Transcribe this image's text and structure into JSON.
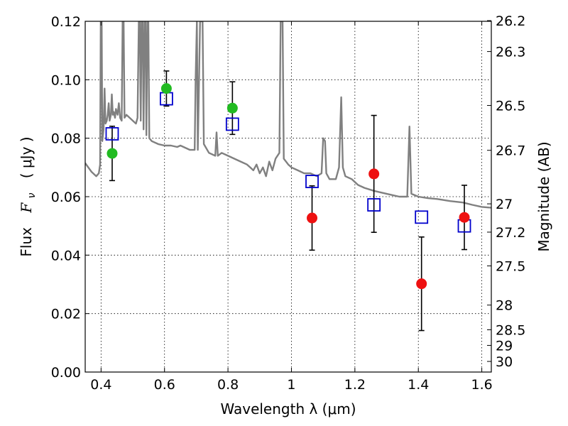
{
  "chart_data": {
    "type": "scatter",
    "xlabel": "Wavelength  λ (μm)",
    "ylabel_text": "Flux",
    "ylabel_math_var": "F",
    "ylabel_math_sub": "ν",
    "ylabel_unit": "( μJy )",
    "y2label": "Magnitude (AB)",
    "xlim": [
      0.35,
      1.63
    ],
    "ylim": [
      0.0,
      0.12
    ],
    "grid": true,
    "x_ticks": [
      {
        "value": 0.4,
        "label": "0.4"
      },
      {
        "value": 0.6,
        "label": "0.6"
      },
      {
        "value": 0.8,
        "label": "0.8"
      },
      {
        "value": 1.0,
        "label": "1"
      },
      {
        "value": 1.2,
        "label": "1.2"
      },
      {
        "value": 1.4,
        "label": "1.4"
      },
      {
        "value": 1.6,
        "label": "1.6"
      }
    ],
    "y_ticks": [
      {
        "value": 0.0,
        "label": "0.00"
      },
      {
        "value": 0.02,
        "label": "0.02"
      },
      {
        "value": 0.04,
        "label": "0.04"
      },
      {
        "value": 0.06,
        "label": "0.06"
      },
      {
        "value": 0.08,
        "label": "0.08"
      },
      {
        "value": 0.1,
        "label": "0.10"
      },
      {
        "value": 0.12,
        "label": "0.12"
      }
    ],
    "y2_ticks": [
      {
        "mag": 26.2,
        "label": "26.2"
      },
      {
        "mag": 26.3,
        "label": "26.3"
      },
      {
        "mag": 26.5,
        "label": "26.5"
      },
      {
        "mag": 26.7,
        "label": "26.7"
      },
      {
        "mag": 27.0,
        "label": "27"
      },
      {
        "mag": 27.2,
        "label": "27.2"
      },
      {
        "mag": 27.5,
        "label": "27.5"
      },
      {
        "mag": 28.0,
        "label": "28"
      },
      {
        "mag": 28.5,
        "label": "28.5"
      },
      {
        "mag": 29.0,
        "label": "29"
      },
      {
        "mag": 30.0,
        "label": "30"
      }
    ],
    "model_points": [
      {
        "x": 0.435,
        "y": 0.0815
      },
      {
        "x": 0.606,
        "y": 0.0935
      },
      {
        "x": 0.814,
        "y": 0.0848
      },
      {
        "x": 1.065,
        "y": 0.0652
      },
      {
        "x": 1.26,
        "y": 0.0572
      },
      {
        "x": 1.41,
        "y": 0.053
      },
      {
        "x": 1.545,
        "y": 0.05
      }
    ],
    "observed_optical": [
      {
        "x": 0.435,
        "y": 0.0748,
        "err": 0.0093
      },
      {
        "x": 0.606,
        "y": 0.097,
        "err": 0.006
      },
      {
        "x": 0.814,
        "y": 0.0903,
        "err": 0.009
      }
    ],
    "observed_nir": [
      {
        "x": 1.065,
        "y": 0.0527,
        "err": 0.011
      },
      {
        "x": 1.26,
        "y": 0.0678,
        "err": 0.02
      },
      {
        "x": 1.41,
        "y": 0.0302,
        "err": 0.016
      },
      {
        "x": 1.545,
        "y": 0.0529,
        "err": 0.011
      }
    ],
    "spectrum": [
      [
        0.35,
        0.0715
      ],
      [
        0.37,
        0.0685
      ],
      [
        0.385,
        0.067
      ],
      [
        0.393,
        0.068
      ],
      [
        0.397,
        0.071
      ],
      [
        0.399,
        0.12
      ],
      [
        0.402,
        0.12
      ],
      [
        0.404,
        0.079
      ],
      [
        0.408,
        0.083
      ],
      [
        0.411,
        0.097
      ],
      [
        0.414,
        0.085
      ],
      [
        0.418,
        0.086
      ],
      [
        0.421,
        0.088
      ],
      [
        0.424,
        0.092
      ],
      [
        0.427,
        0.086
      ],
      [
        0.431,
        0.088
      ],
      [
        0.434,
        0.095
      ],
      [
        0.437,
        0.088
      ],
      [
        0.44,
        0.089
      ],
      [
        0.444,
        0.087
      ],
      [
        0.447,
        0.09
      ],
      [
        0.452,
        0.088
      ],
      [
        0.456,
        0.092
      ],
      [
        0.46,
        0.087
      ],
      [
        0.465,
        0.086
      ],
      [
        0.468,
        0.12
      ],
      [
        0.471,
        0.12
      ],
      [
        0.474,
        0.087
      ],
      [
        0.48,
        0.088
      ],
      [
        0.49,
        0.087
      ],
      [
        0.5,
        0.086
      ],
      [
        0.51,
        0.085
      ],
      [
        0.515,
        0.087
      ],
      [
        0.519,
        0.12
      ],
      [
        0.522,
        0.12
      ],
      [
        0.525,
        0.086
      ],
      [
        0.528,
        0.12
      ],
      [
        0.531,
        0.12
      ],
      [
        0.534,
        0.083
      ],
      [
        0.537,
        0.12
      ],
      [
        0.54,
        0.12
      ],
      [
        0.543,
        0.081
      ],
      [
        0.546,
        0.12
      ],
      [
        0.549,
        0.12
      ],
      [
        0.552,
        0.08
      ],
      [
        0.56,
        0.079
      ],
      [
        0.58,
        0.078
      ],
      [
        0.6,
        0.0775
      ],
      [
        0.62,
        0.0775
      ],
      [
        0.64,
        0.077
      ],
      [
        0.65,
        0.0775
      ],
      [
        0.66,
        0.077
      ],
      [
        0.68,
        0.076
      ],
      [
        0.695,
        0.076
      ],
      [
        0.698,
        0.1
      ],
      [
        0.702,
        0.12
      ],
      [
        0.705,
        0.076
      ],
      [
        0.712,
        0.12
      ],
      [
        0.716,
        0.12
      ],
      [
        0.72,
        0.12
      ],
      [
        0.724,
        0.078
      ],
      [
        0.74,
        0.075
      ],
      [
        0.76,
        0.074
      ],
      [
        0.764,
        0.082
      ],
      [
        0.768,
        0.074
      ],
      [
        0.78,
        0.075
      ],
      [
        0.8,
        0.074
      ],
      [
        0.82,
        0.073
      ],
      [
        0.84,
        0.072
      ],
      [
        0.86,
        0.071
      ],
      [
        0.87,
        0.07
      ],
      [
        0.88,
        0.069
      ],
      [
        0.89,
        0.071
      ],
      [
        0.9,
        0.068
      ],
      [
        0.91,
        0.07
      ],
      [
        0.92,
        0.067
      ],
      [
        0.93,
        0.072
      ],
      [
        0.94,
        0.069
      ],
      [
        0.95,
        0.073
      ],
      [
        0.962,
        0.075
      ],
      [
        0.966,
        0.12
      ],
      [
        0.972,
        0.12
      ],
      [
        0.976,
        0.073
      ],
      [
        0.99,
        0.071
      ],
      [
        1.0,
        0.07
      ],
      [
        1.02,
        0.069
      ],
      [
        1.04,
        0.068
      ],
      [
        1.06,
        0.068
      ],
      [
        1.08,
        0.067
      ],
      [
        1.095,
        0.068
      ],
      [
        1.1,
        0.08
      ],
      [
        1.106,
        0.079
      ],
      [
        1.11,
        0.068
      ],
      [
        1.12,
        0.066
      ],
      [
        1.14,
        0.066
      ],
      [
        1.15,
        0.07
      ],
      [
        1.157,
        0.094
      ],
      [
        1.162,
        0.07
      ],
      [
        1.17,
        0.067
      ],
      [
        1.19,
        0.066
      ],
      [
        1.21,
        0.064
      ],
      [
        1.23,
        0.063
      ],
      [
        1.26,
        0.062
      ],
      [
        1.3,
        0.061
      ],
      [
        1.34,
        0.06
      ],
      [
        1.365,
        0.06
      ],
      [
        1.372,
        0.084
      ],
      [
        1.378,
        0.061
      ],
      [
        1.4,
        0.06
      ],
      [
        1.43,
        0.0595
      ],
      [
        1.46,
        0.0592
      ],
      [
        1.5,
        0.0585
      ],
      [
        1.54,
        0.058
      ],
      [
        1.57,
        0.0572
      ],
      [
        1.6,
        0.0565
      ],
      [
        1.63,
        0.0562
      ]
    ]
  }
}
